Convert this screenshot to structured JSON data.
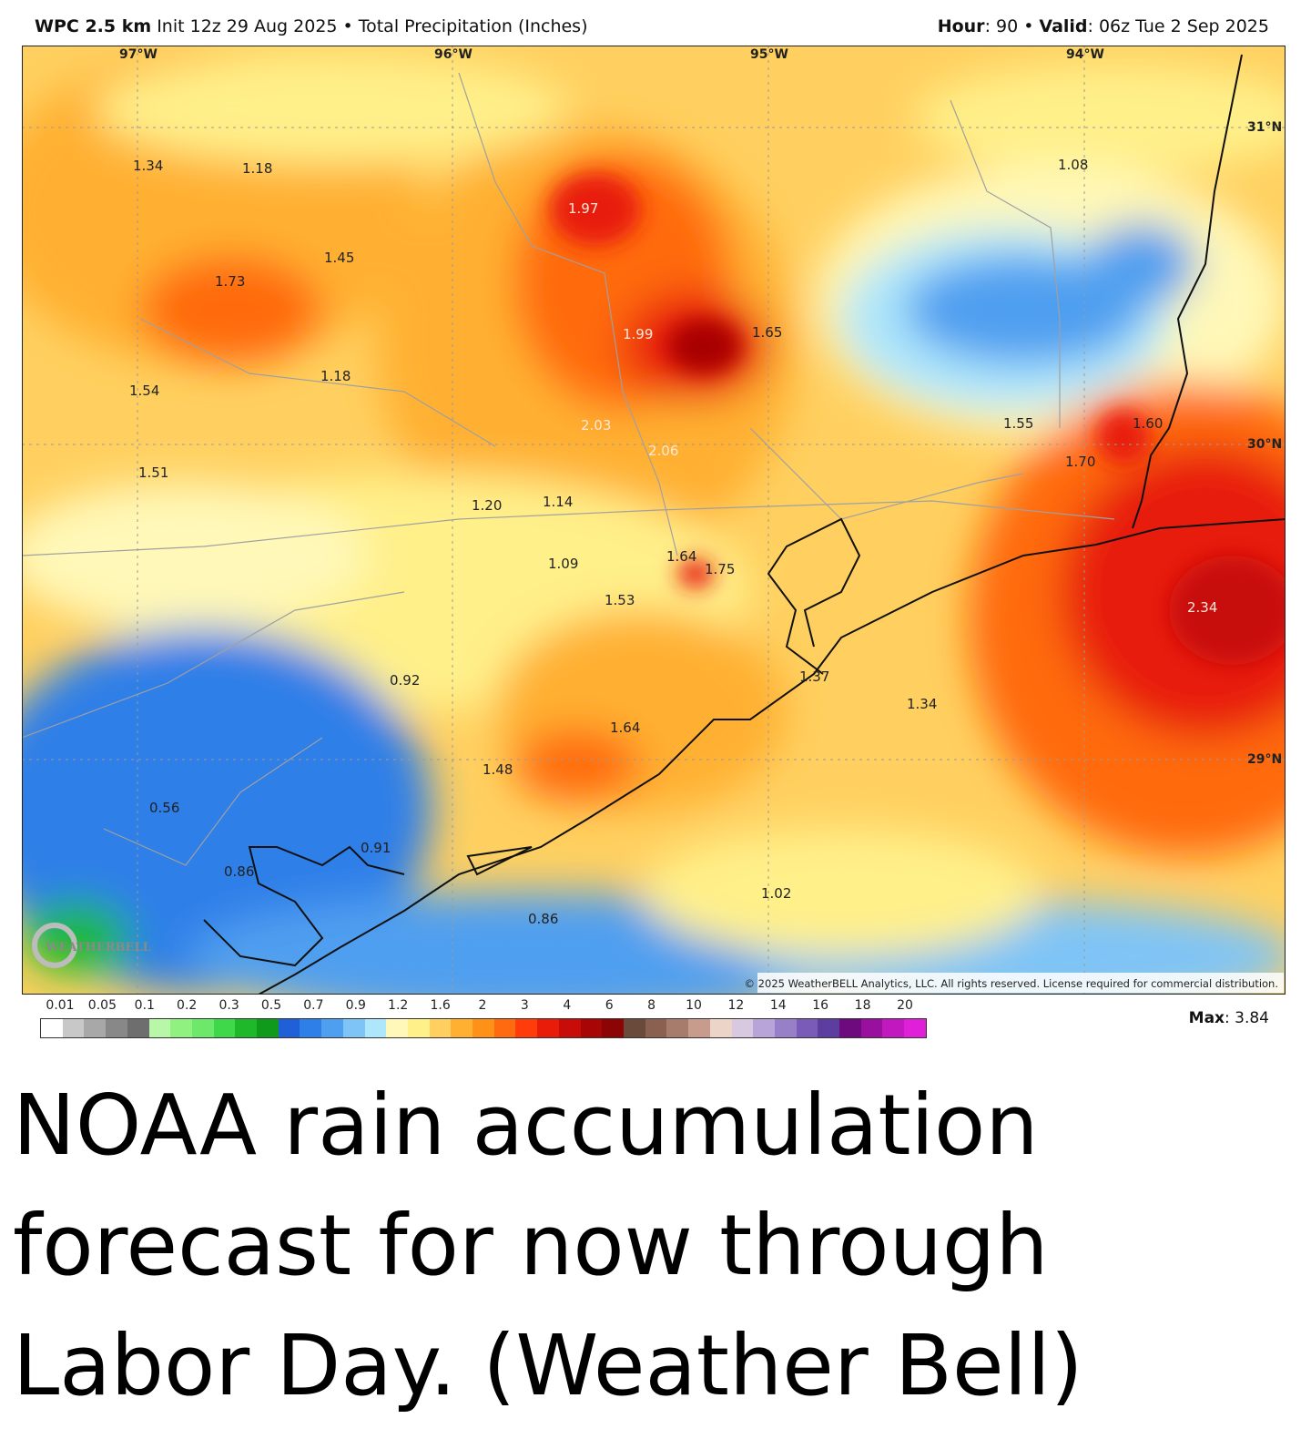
{
  "header": {
    "model": "WPC 2.5 km",
    "init": "Init 12z 29 Aug 2025",
    "product": "Total Precipitation (Inches)",
    "hour_label": "Hour",
    "hour_value": ": 90",
    "valid_label": "Valid",
    "valid_value": ": 06z Tue 2 Sep 2025"
  },
  "map": {
    "longitude_labels": [
      "97°W",
      "96°W",
      "95°W",
      "94°W"
    ],
    "latitude_labels": [
      "31°N",
      "30°N",
      "29°N"
    ],
    "point_values": [
      "1.34",
      "1.18",
      "1.97",
      "1.08",
      "1.45",
      "1.73",
      "1.99",
      "1.65",
      "1.54",
      "1.18",
      "2.03",
      "2.06",
      "1.55",
      "1.60",
      "1.70",
      "1.51",
      "1.20",
      "1.14",
      "1.09",
      "1.64",
      "1.75",
      "1.53",
      "2.34",
      "0.92",
      "1.37",
      "1.34",
      "1.64",
      "1.48",
      "0.56",
      "0.91",
      "0.86",
      "1.02",
      "0.86"
    ],
    "copyright": "© 2025 WeatherBELL Analytics, LLC. All rights reserved. License required for commercial distribution.",
    "logo_text": "WEATHERBELL",
    "logo_icon": "weatherbell-swirl-icon"
  },
  "colorbar": {
    "labels": [
      "0.01",
      "0.05",
      "0.1",
      "0.2",
      "0.3",
      "0.5",
      "0.7",
      "0.9",
      "1.2",
      "1.6",
      "2",
      "3",
      "4",
      "6",
      "8",
      "10",
      "12",
      "14",
      "16",
      "18",
      "20"
    ],
    "colors": [
      "#ffffff",
      "#c8c8c8",
      "#a8a8a8",
      "#888888",
      "#6e6e6e",
      "#b8f7a8",
      "#90f080",
      "#6ee86a",
      "#3ed84a",
      "#1fb82a",
      "#0f9a1c",
      "#1f5fd8",
      "#2f7fe8",
      "#4f9ff0",
      "#7fc4f6",
      "#aee6fb",
      "#fff8b8",
      "#fff08a",
      "#ffd060",
      "#ffb030",
      "#ff9018",
      "#ff6a10",
      "#ff3c0a",
      "#e81c08",
      "#c80c08",
      "#a80606",
      "#8c0404",
      "#6a4a3a",
      "#8a6050",
      "#a87c6c",
      "#c89c8c",
      "#ecd4c8",
      "#d8c8e0",
      "#b8a4d8",
      "#9880c8",
      "#7a5cb8",
      "#5c3ea0",
      "#6e0a7e",
      "#9a109e",
      "#c218c0",
      "#e020d8"
    ],
    "max_label": "Max",
    "max_value": ": 3.84"
  },
  "caption": "NOAA rain accumulation forecast for now through Labor Day. (Weather Bell)"
}
